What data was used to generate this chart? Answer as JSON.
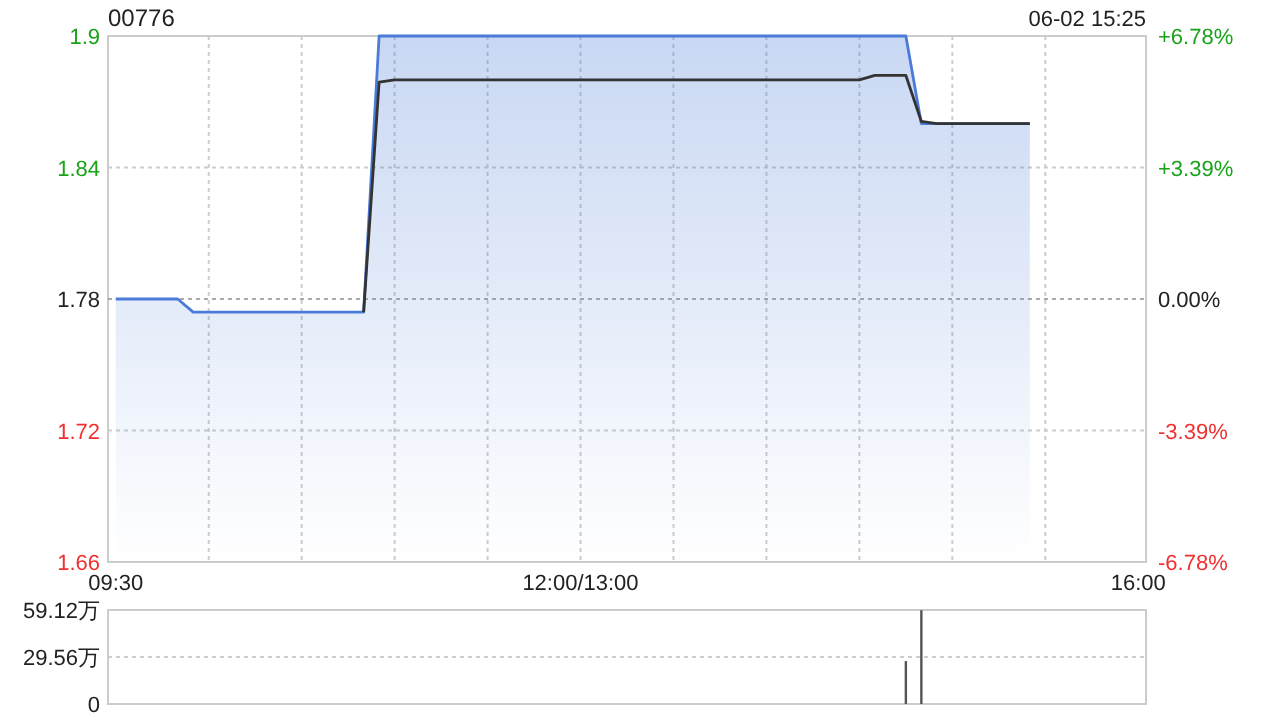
{
  "chart_data": [
    {
      "type": "line",
      "title": "00776",
      "subtitle": "06-02 15:25",
      "grid": true,
      "categories": [
        "09:30",
        null,
        null,
        null,
        null,
        null,
        null,
        null,
        null,
        null,
        null,
        null,
        null,
        null,
        null,
        null,
        null,
        null,
        null,
        null,
        null,
        null,
        null,
        null,
        null,
        null,
        null,
        null,
        null,
        null,
        "12:00/13:00",
        null,
        null,
        null,
        null,
        null,
        null,
        null,
        null,
        null,
        null,
        null,
        null,
        null,
        null,
        null,
        null,
        null,
        null,
        null,
        null,
        null,
        null,
        null,
        null,
        null,
        null,
        null,
        null,
        null,
        null,
        null,
        null,
        null,
        null,
        null,
        "16:00"
      ],
      "ylim": [
        1.66,
        1.9
      ],
      "yticks": [
        1.66,
        1.72,
        1.78,
        1.84,
        1.9
      ],
      "y2lim": [
        -6.78,
        6.78
      ],
      "y2ticks": [
        {
          "value": -6.78,
          "label": "-6.78%"
        },
        {
          "value": -3.39,
          "label": "-3.39%"
        },
        {
          "value": 0,
          "label": "0.00%"
        },
        {
          "value": 3.39,
          "label": "+3.39%"
        },
        {
          "value": 6.78,
          "label": "+6.78%"
        }
      ],
      "ref_lines": [
        {
          "axis": "y",
          "value": 1.78,
          "label": null,
          "color": "#aaaaaa",
          "line_style": "dotted"
        }
      ],
      "series": [
        {
          "type": "area",
          "color": "#4a7bd8",
          "values": [
            1.78,
            1.78,
            1.78,
            1.78,
            1.78,
            1.774,
            1.774,
            1.774,
            1.774,
            1.774,
            1.774,
            1.774,
            1.774,
            1.774,
            1.774,
            1.774,
            1.774,
            1.9,
            1.9,
            1.9,
            1.9,
            1.9,
            1.9,
            1.9,
            1.9,
            1.9,
            1.9,
            1.9,
            1.9,
            1.9,
            1.9,
            1.9,
            1.9,
            1.9,
            1.9,
            1.9,
            1.9,
            1.9,
            1.9,
            1.9,
            1.9,
            1.9,
            1.9,
            1.9,
            1.9,
            1.9,
            1.9,
            1.9,
            1.9,
            1.9,
            1.9,
            1.9,
            1.86,
            1.86,
            1.86,
            1.86,
            1.86,
            1.86,
            1.86,
            1.86,
            null,
            null,
            null,
            null,
            null,
            null,
            null
          ]
        },
        {
          "type": "line",
          "color": "#333333",
          "values": [
            null,
            null,
            null,
            null,
            null,
            null,
            null,
            null,
            null,
            null,
            null,
            null,
            null,
            null,
            null,
            null,
            1.774,
            1.879,
            1.88,
            1.88,
            1.88,
            1.88,
            1.88,
            1.88,
            1.88,
            1.88,
            1.88,
            1.88,
            1.88,
            1.88,
            1.88,
            1.88,
            1.88,
            1.88,
            1.88,
            1.88,
            1.88,
            1.88,
            1.88,
            1.88,
            1.88,
            1.88,
            1.88,
            1.88,
            1.88,
            1.88,
            1.88,
            1.88,
            1.88,
            1.882,
            1.882,
            1.882,
            1.861,
            1.86,
            1.86,
            1.86,
            1.86,
            1.86,
            1.86,
            1.86,
            null,
            null,
            null,
            null,
            null,
            null,
            null
          ]
        }
      ]
    },
    {
      "type": "bar",
      "grid": "y",
      "categories": [
        null,
        null,
        null,
        null,
        null,
        null,
        null,
        null,
        null,
        null,
        null,
        null,
        null,
        null,
        null,
        null,
        null,
        null,
        null,
        null,
        null,
        null,
        null,
        null,
        null,
        null,
        null,
        null,
        null,
        null,
        null,
        null,
        null,
        null,
        null,
        null,
        null,
        null,
        null,
        null,
        null,
        null,
        null,
        null,
        null,
        null,
        null,
        null,
        null,
        null,
        null,
        null,
        null,
        null,
        null,
        null,
        null,
        null,
        null,
        null,
        null,
        null,
        null,
        null,
        null,
        null,
        null
      ],
      "ylim": [
        0,
        59.12
      ],
      "yticks": [
        {
          "value": 0,
          "label": "0"
        },
        {
          "value": 29.56,
          "label": "29.56万"
        },
        {
          "value": 59.12,
          "label": "59.12万"
        }
      ],
      "series": [
        {
          "color": "#555555",
          "values": [
            null,
            null,
            null,
            null,
            null,
            null,
            null,
            null,
            null,
            null,
            null,
            null,
            null,
            null,
            null,
            null,
            null,
            null,
            null,
            null,
            null,
            null,
            null,
            null,
            null,
            null,
            null,
            null,
            null,
            null,
            null,
            null,
            null,
            null,
            null,
            null,
            null,
            null,
            null,
            null,
            null,
            null,
            null,
            null,
            null,
            null,
            null,
            null,
            null,
            null,
            null,
            27,
            59,
            null,
            null,
            null,
            null,
            null,
            null,
            null,
            null,
            null,
            null,
            null,
            null,
            null,
            null
          ]
        }
      ]
    }
  ]
}
